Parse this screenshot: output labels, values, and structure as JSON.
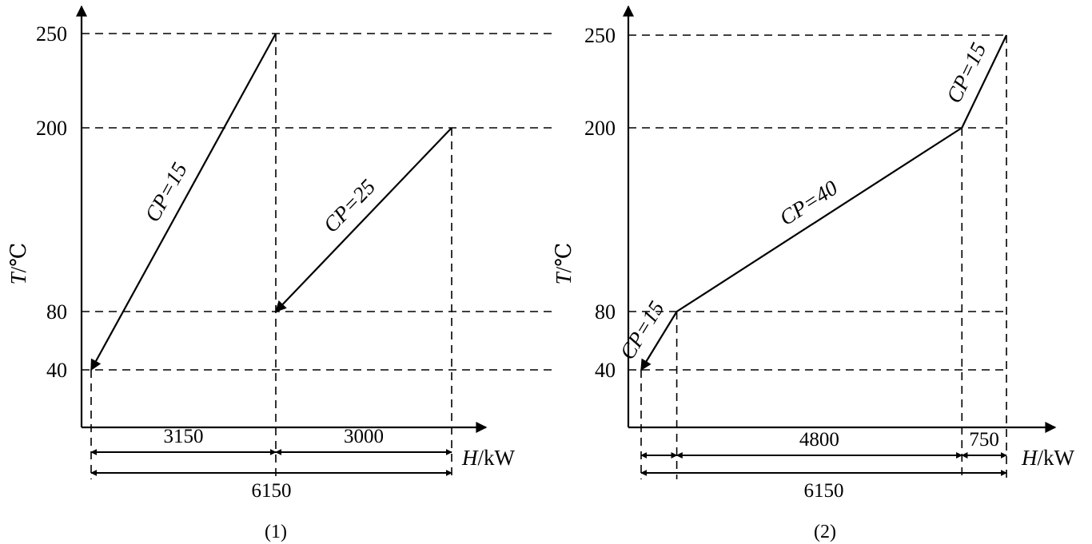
{
  "chart_data": [
    {
      "type": "line",
      "caption": "(1)",
      "xlabel_italic": "H",
      "xlabel_unit": "/kW",
      "ylabel_italic": "T",
      "ylabel_unit": "/℃",
      "yticks": [
        40,
        80,
        200,
        250
      ],
      "grid": "dashed",
      "series": [
        {
          "label": "CP=15",
          "points": [
            [
              0,
              250
            ],
            [
              -3150,
              40
            ]
          ]
        },
        {
          "label": "CP=25",
          "points": [
            [
              3000,
              200
            ],
            [
              0,
              80
            ]
          ]
        }
      ],
      "dimensions": [
        {
          "label": "3150",
          "span": [
            -3150,
            0
          ]
        },
        {
          "label": "3000",
          "span": [
            0,
            3000
          ]
        },
        {
          "label": "6150",
          "span": [
            -3150,
            3000
          ]
        }
      ]
    },
    {
      "type": "line",
      "caption": "(2)",
      "xlabel_italic": "H",
      "xlabel_unit": "/kW",
      "ylabel_italic": "T",
      "ylabel_unit": "/℃",
      "yticks": [
        40,
        80,
        200,
        250
      ],
      "grid": "dashed",
      "series": [
        {
          "label": "CP=15",
          "points": [
            [
              6150,
              250
            ],
            [
              5400,
              200
            ]
          ]
        },
        {
          "label": "CP=40",
          "points": [
            [
              5400,
              200
            ],
            [
              600,
              80
            ]
          ]
        },
        {
          "label": "CP=15",
          "points": [
            [
              600,
              80
            ],
            [
              0,
              40
            ]
          ]
        }
      ],
      "dimensions": [
        {
          "label": "",
          "span": [
            0,
            600
          ]
        },
        {
          "label": "4800",
          "span": [
            600,
            5400
          ]
        },
        {
          "label": "750",
          "span": [
            5400,
            6150
          ]
        },
        {
          "label": "6150",
          "span": [
            0,
            6150
          ]
        }
      ]
    }
  ]
}
